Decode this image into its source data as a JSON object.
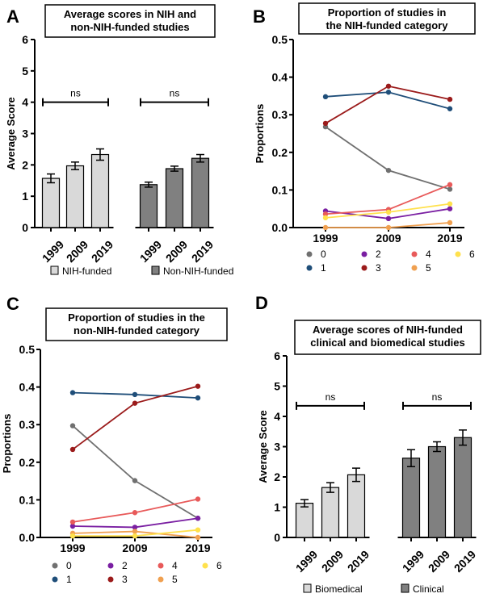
{
  "figure": {
    "panels": [
      {
        "id": "A",
        "letter": "A",
        "type": "bar",
        "title_lines": [
          "Average scores in NIH and",
          "non-NIH-funded studies"
        ],
        "ylabel": "Average Score",
        "ylim": [
          0,
          6
        ],
        "yticks": [
          0,
          1,
          2,
          3,
          4,
          5,
          6
        ],
        "groups": [
          {
            "name": "NIH-funded",
            "color": "#d9d9d9",
            "categories": [
              "1999",
              "2009",
              "2019"
            ],
            "values": [
              1.57,
              1.97,
              2.33
            ],
            "errors": [
              0.14,
              0.12,
              0.18
            ],
            "ns": "ns",
            "ns_y": 4.0
          },
          {
            "name": "Non-NIH-funded",
            "color": "#808080",
            "categories": [
              "1999",
              "2009",
              "2019"
            ],
            "values": [
              1.37,
              1.88,
              2.21
            ],
            "errors": [
              0.08,
              0.08,
              0.12
            ],
            "ns": "ns",
            "ns_y": 4.0
          }
        ]
      },
      {
        "id": "B",
        "letter": "B",
        "type": "line",
        "title_lines": [
          "Proportion of studies in",
          "the NIH-funded category"
        ],
        "ylabel": "Proportions",
        "ylim": [
          0,
          0.5
        ],
        "yticks": [
          "0.0",
          "0.1",
          "0.2",
          "0.3",
          "0.4",
          "0.5"
        ],
        "x": [
          "1999",
          "2009",
          "2019"
        ],
        "series": [
          {
            "name": "0",
            "color": "#707070",
            "values": [
              0.268,
              0.152,
              0.102
            ]
          },
          {
            "name": "1",
            "color": "#1f4e79",
            "values": [
              0.348,
              0.36,
              0.316
            ]
          },
          {
            "name": "2",
            "color": "#7a1fa2",
            "values": [
              0.044,
              0.024,
              0.05
            ]
          },
          {
            "name": "3",
            "color": "#9b1b1b",
            "values": [
              0.277,
              0.376,
              0.341
            ]
          },
          {
            "name": "4",
            "color": "#e85a5a",
            "values": [
              0.036,
              0.048,
              0.114
            ]
          },
          {
            "name": "5",
            "color": "#f0a050",
            "values": [
              0.0,
              0.0,
              0.013
            ]
          },
          {
            "name": "6",
            "color": "#ffe14d",
            "values": [
              0.026,
              0.041,
              0.063
            ]
          }
        ]
      },
      {
        "id": "C",
        "letter": "C",
        "type": "line",
        "title_lines": [
          "Proportion of studies in the",
          "non-NIH-funded category"
        ],
        "ylabel": "Proportions",
        "ylim": [
          0,
          0.5
        ],
        "yticks": [
          "0.0",
          "0.1",
          "0.2",
          "0.3",
          "0.4",
          "0.5"
        ],
        "x": [
          "1999",
          "2009",
          "2019"
        ],
        "series": [
          {
            "name": "0",
            "color": "#707070",
            "values": [
              0.297,
              0.151,
              0.051
            ]
          },
          {
            "name": "1",
            "color": "#1f4e79",
            "values": [
              0.385,
              0.38,
              0.371
            ]
          },
          {
            "name": "2",
            "color": "#7a1fa2",
            "values": [
              0.03,
              0.027,
              0.051
            ]
          },
          {
            "name": "3",
            "color": "#9b1b1b",
            "values": [
              0.234,
              0.357,
              0.402
            ]
          },
          {
            "name": "4",
            "color": "#e85a5a",
            "values": [
              0.041,
              0.066,
              0.102
            ]
          },
          {
            "name": "5",
            "color": "#f0a050",
            "values": [
              0.011,
              0.016,
              0.0
            ]
          },
          {
            "name": "6",
            "color": "#ffe14d",
            "values": [
              0.004,
              0.004,
              0.02
            ]
          }
        ]
      },
      {
        "id": "D",
        "letter": "D",
        "type": "bar",
        "title_lines": [
          "Average scores of NIH-funded",
          "clinical and biomedical studies"
        ],
        "ylabel": "Average Score",
        "ylim": [
          0,
          6
        ],
        "yticks": [
          0,
          1,
          2,
          3,
          4,
          5,
          6
        ],
        "groups": [
          {
            "name": "Biomedical",
            "color": "#d9d9d9",
            "categories": [
              "1999",
              "2009",
              "2019"
            ],
            "values": [
              1.13,
              1.65,
              2.07
            ],
            "errors": [
              0.12,
              0.16,
              0.22
            ],
            "ns": "ns",
            "ns_y": 4.35
          },
          {
            "name": "Clinical",
            "color": "#808080",
            "categories": [
              "1999",
              "2009",
              "2019"
            ],
            "values": [
              2.62,
              3.0,
              3.3
            ],
            "errors": [
              0.28,
              0.16,
              0.25
            ],
            "ns": "ns",
            "ns_y": 4.35
          }
        ]
      }
    ]
  }
}
